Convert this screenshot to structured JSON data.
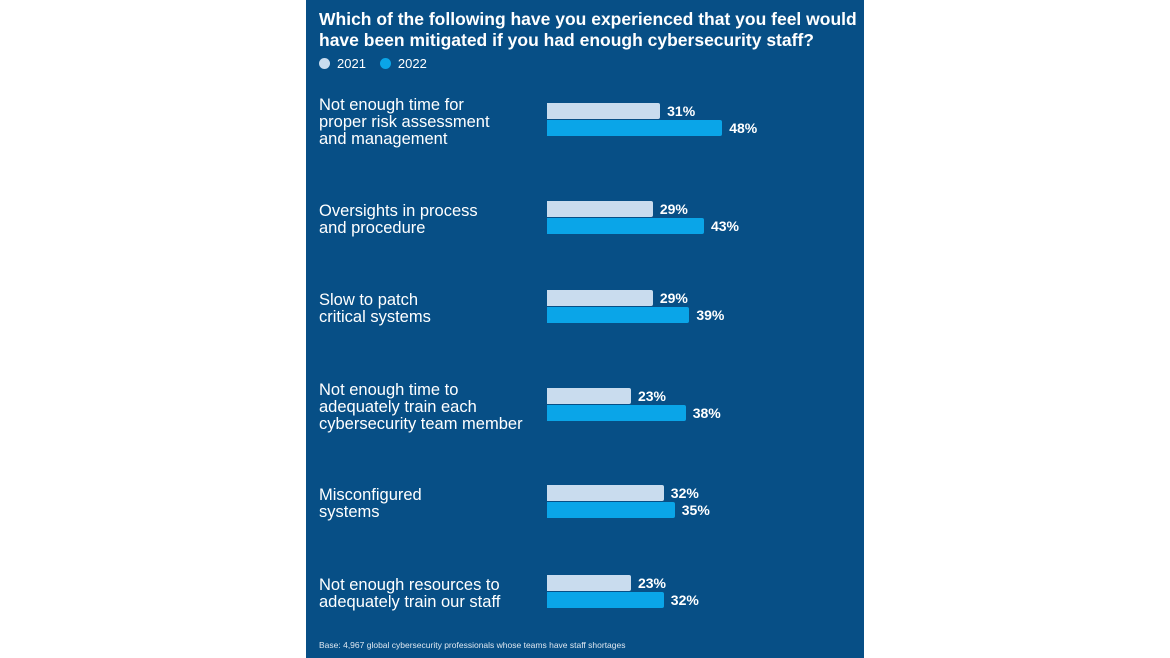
{
  "colors": {
    "background": "#074f86",
    "series_2021": "#c9dcee",
    "series_2022": "#0aa5e8",
    "text": "#ffffff"
  },
  "chart_data": {
    "type": "bar",
    "orientation": "horizontal",
    "title": "Which of the following have you experienced that you feel would have been mitigated if you had enough cybersecurity staff?",
    "categories": [
      "Not enough time for proper risk assessment and management",
      "Oversights in process and procedure",
      "Slow to patch critical systems",
      "Not enough time to adequately train each cybersecurity team member",
      "Misconfigured systems",
      "Not enough resources to adequately train our staff"
    ],
    "category_lines": [
      [
        "Not enough time for",
        "proper risk assessment",
        "and management"
      ],
      [
        "Oversights in process",
        "and procedure"
      ],
      [
        "Slow to patch",
        "critical systems"
      ],
      [
        "Not enough time to",
        "adequately train each",
        "cybersecurity team member"
      ],
      [
        "Misconfigured",
        "systems"
      ],
      [
        "Not enough resources to",
        "adequately train our staff"
      ]
    ],
    "series": [
      {
        "name": "2021",
        "values": [
          31,
          29,
          29,
          23,
          32,
          23
        ],
        "labels": [
          "31%",
          "29%",
          "29%",
          "23%",
          "32%",
          "23%"
        ]
      },
      {
        "name": "2022",
        "values": [
          48,
          43,
          39,
          38,
          35,
          32
        ],
        "labels": [
          "48%",
          "43%",
          "39%",
          "38%",
          "35%",
          "32%"
        ]
      }
    ],
    "legend": [
      "2021",
      "2022"
    ],
    "legend_position": "top-left",
    "unit": "%",
    "xlim": [
      0,
      100
    ],
    "grid": false,
    "footnote": "Base: 4,967 global cybersecurity professionals whose teams have staff shortages"
  }
}
